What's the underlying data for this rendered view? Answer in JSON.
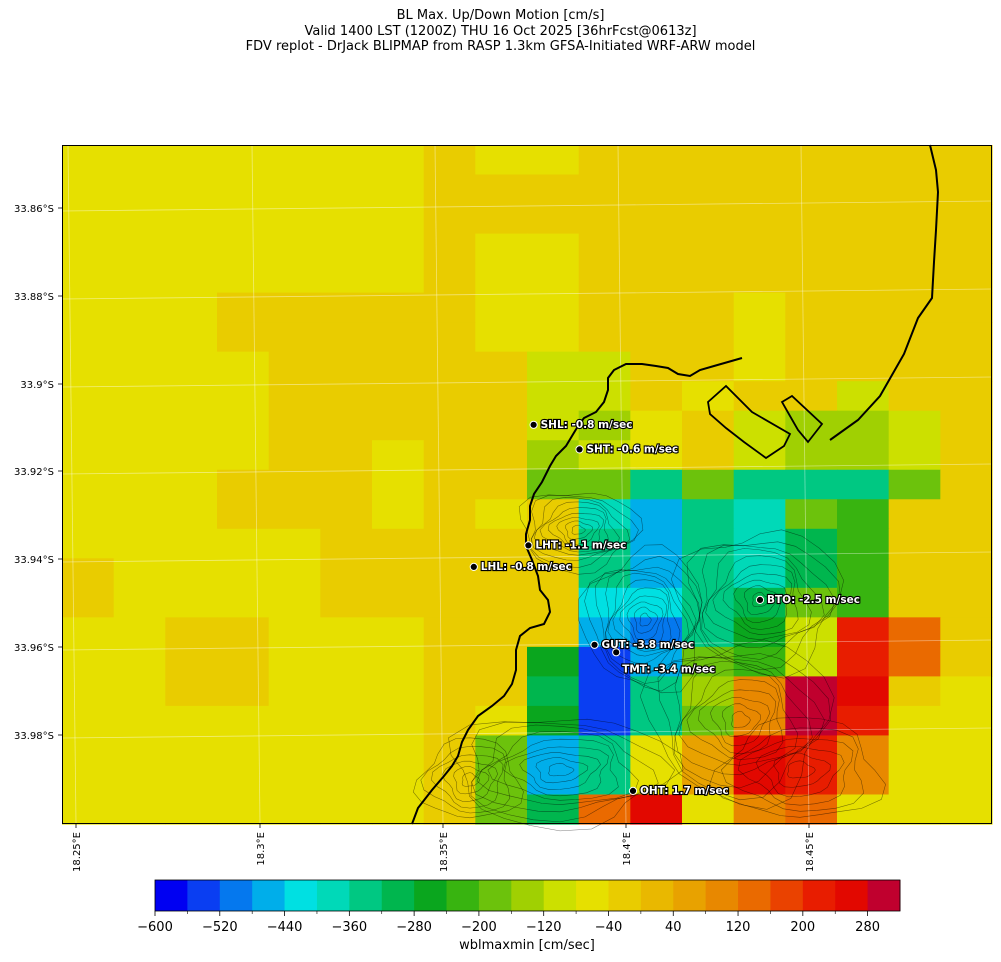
{
  "chart_data": {
    "type": "heatmap",
    "title_lines": [
      "BL Max. Up/Down Motion [cm/s]",
      "Valid 1400 LST (1200Z) THU 16 Oct 2025 [36hrFcst@0613z]",
      "FDV replot - DrJack BLIPMAP from RASP 1.3km GFSA-Initiated WRF-ARW model"
    ],
    "lat_ticks": [
      "33.86°S",
      "33.88°S",
      "33.9°S",
      "33.92°S",
      "33.94°S",
      "33.96°S",
      "33.98°S"
    ],
    "lon_ticks": [
      "18.25°E",
      "18.3°E",
      "18.35°E",
      "18.4°E",
      "18.45°E"
    ],
    "colorbar": {
      "label": "wblmaxmin [cm/sec]",
      "min": -600,
      "max": 320,
      "step": 40,
      "tick_values": [
        -600,
        -520,
        -440,
        -360,
        -280,
        -200,
        -120,
        -40,
        40,
        120,
        200,
        280
      ],
      "tick_labels": [
        "−600",
        "−520",
        "−440",
        "−360",
        "−280",
        "−200",
        "−120",
        "−40",
        "40",
        "120",
        "200",
        "280"
      ],
      "colors": [
        "#0000f2",
        "#0a3ef2",
        "#0578ee",
        "#00aeea",
        "#00e0e2",
        "#00d9b8",
        "#00c882",
        "#00b64e",
        "#0aa61e",
        "#38b410",
        "#6cc20c",
        "#a0d002",
        "#cce000",
        "#e6e000",
        "#e9cc00",
        "#e9b800",
        "#e8a200",
        "#e88800",
        "#ea6a00",
        "#ea4200",
        "#e81d00",
        "#e20800",
        "#c0002e"
      ]
    },
    "grid_values": [
      [
        -64,
        -64,
        -64,
        -64,
        -64,
        -64,
        -64,
        -40,
        -56,
        -56,
        -20,
        -20,
        -20,
        -20,
        -20,
        -20,
        -20,
        -40
      ],
      [
        -64,
        -64,
        -64,
        -64,
        -64,
        -64,
        -64,
        -40,
        -40,
        -40,
        -20,
        -20,
        -20,
        -20,
        -20,
        -20,
        -40,
        -40
      ],
      [
        -64,
        -64,
        -64,
        -64,
        -64,
        -64,
        -64,
        -40,
        -40,
        -40,
        -20,
        -20,
        -40,
        -40,
        -40,
        -20,
        -20,
        -40
      ],
      [
        -64,
        -64,
        -64,
        -64,
        -64,
        -64,
        -64,
        -40,
        -64,
        -64,
        -40,
        -40,
        -20,
        -20,
        -40,
        -40,
        -40,
        -20
      ],
      [
        -64,
        -64,
        -64,
        -64,
        -64,
        -64,
        -64,
        -40,
        -64,
        -64,
        -40,
        -40,
        -20,
        -20,
        -40,
        -40,
        -40,
        -40
      ],
      [
        -64,
        -64,
        -56,
        -40,
        -40,
        -40,
        -40,
        -40,
        -64,
        -64,
        -40,
        -40,
        -40,
        -56,
        -40,
        -40,
        -40,
        -40
      ],
      [
        -64,
        -64,
        -64,
        -40,
        -40,
        -40,
        -40,
        -40,
        -64,
        -64,
        -40,
        -40,
        -40,
        -56,
        -40,
        -40,
        -40,
        -40
      ],
      [
        -64,
        -64,
        -64,
        -64,
        -40,
        -40,
        -40,
        -40,
        -40,
        -100,
        -100,
        -40,
        -40,
        -56,
        -40,
        -40,
        -40,
        -40
      ],
      [
        -64,
        -64,
        -64,
        -64,
        -40,
        -40,
        -40,
        -40,
        -40,
        -100,
        -100,
        -40,
        -64,
        -40,
        -40,
        -100,
        -40,
        -40
      ],
      [
        -64,
        -64,
        -64,
        -64,
        -40,
        -40,
        -40,
        -40,
        -40,
        -120,
        -130,
        -64,
        -40,
        -120,
        -130,
        -130,
        -120,
        -40
      ],
      [
        -64,
        -64,
        -64,
        -64,
        -40,
        -40,
        -64,
        -40,
        -40,
        -130,
        -120,
        -64,
        -40,
        -120,
        -130,
        -130,
        -120,
        -40
      ],
      [
        -64,
        -64,
        -64,
        -40,
        -40,
        -40,
        -64,
        -40,
        -40,
        -180,
        -200,
        -340,
        -200,
        -340,
        -340,
        -340,
        -200,
        -40
      ],
      [
        -64,
        -64,
        -64,
        -40,
        -40,
        -40,
        -64,
        -40,
        -64,
        -40,
        -400,
        -460,
        -360,
        -380,
        -200,
        -220,
        -40,
        -40
      ],
      [
        -64,
        -64,
        -64,
        -64,
        -64,
        -40,
        -40,
        -40,
        -40,
        -40,
        -360,
        -480,
        -360,
        -380,
        -300,
        -220,
        -40,
        -40
      ],
      [
        -40,
        -64,
        -64,
        -64,
        -64,
        -40,
        -40,
        -40,
        -40,
        -40,
        -360,
        -480,
        -360,
        -380,
        -300,
        -220,
        -40,
        -40
      ],
      [
        -40,
        -64,
        -64,
        -64,
        -64,
        -40,
        -40,
        -40,
        -40,
        -40,
        -440,
        -440,
        -360,
        -300,
        -200,
        -220,
        -40,
        -40
      ],
      [
        -64,
        -64,
        -40,
        -40,
        -64,
        -64,
        -64,
        -40,
        -40,
        -40,
        -480,
        -520,
        -360,
        -280,
        -120,
        220,
        140,
        -40
      ],
      [
        -64,
        -64,
        -40,
        -40,
        -64,
        -64,
        -64,
        -40,
        -40,
        -280,
        -560,
        -470,
        -200,
        -220,
        -120,
        220,
        140,
        -40
      ],
      [
        -64,
        -64,
        -40,
        -40,
        -64,
        -64,
        -64,
        -40,
        -40,
        -300,
        -560,
        -350,
        -150,
        100,
        300,
        240,
        -40,
        -64
      ],
      [
        -64,
        -64,
        -64,
        -64,
        -64,
        -64,
        -64,
        -40,
        -64,
        -280,
        -560,
        -330,
        -200,
        100,
        300,
        220,
        -64,
        -64
      ],
      [
        -64,
        -64,
        -64,
        -64,
        -64,
        -64,
        -64,
        -40,
        -200,
        -480,
        -350,
        -80,
        60,
        240,
        200,
        100,
        -64,
        -64
      ],
      [
        -64,
        -64,
        -64,
        -64,
        -64,
        -64,
        -64,
        -40,
        -200,
        -480,
        -350,
        -80,
        60,
        240,
        200,
        100,
        -64,
        -64
      ],
      [
        -64,
        -64,
        -64,
        -64,
        -64,
        -64,
        -64,
        -40,
        -200,
        -300,
        120,
        240,
        -64,
        80,
        120,
        -64,
        -64,
        -64
      ]
    ],
    "stations": [
      {
        "id": "SHL",
        "label": "SHL: -0.8 m/sec",
        "value": -0.8,
        "lon": 18.3755,
        "lat": -33.9095
      },
      {
        "id": "SHT",
        "label": "SHT: -0.6 m/sec",
        "value": -0.6,
        "lon": 18.388,
        "lat": -33.9151
      },
      {
        "id": "LHT",
        "label": "LHT: -1.1 m/sec",
        "value": -1.1,
        "lon": 18.3741,
        "lat": -33.9369
      },
      {
        "id": "LHL",
        "label": "LHL: -0.8 m/sec",
        "value": -0.8,
        "lon": 18.3592,
        "lat": -33.9418
      },
      {
        "id": "BTO",
        "label": "BTO: -2.5 m/sec",
        "value": -2.5,
        "lon": 18.4372,
        "lat": -33.9493
      },
      {
        "id": "GUT",
        "label": "GUT: -3.8 m/sec",
        "value": -3.8,
        "lon": 18.3921,
        "lat": -33.9595
      },
      {
        "id": "TMT",
        "label": "TMT: -3.4 m/sec",
        "value": -3.4,
        "lon": 18.398,
        "lat": -33.9612
      },
      {
        "id": "OHT",
        "label": "OHT: 1.7 m/sec",
        "value": 1.7,
        "lon": 18.4026,
        "lat": -33.9927
      }
    ]
  }
}
